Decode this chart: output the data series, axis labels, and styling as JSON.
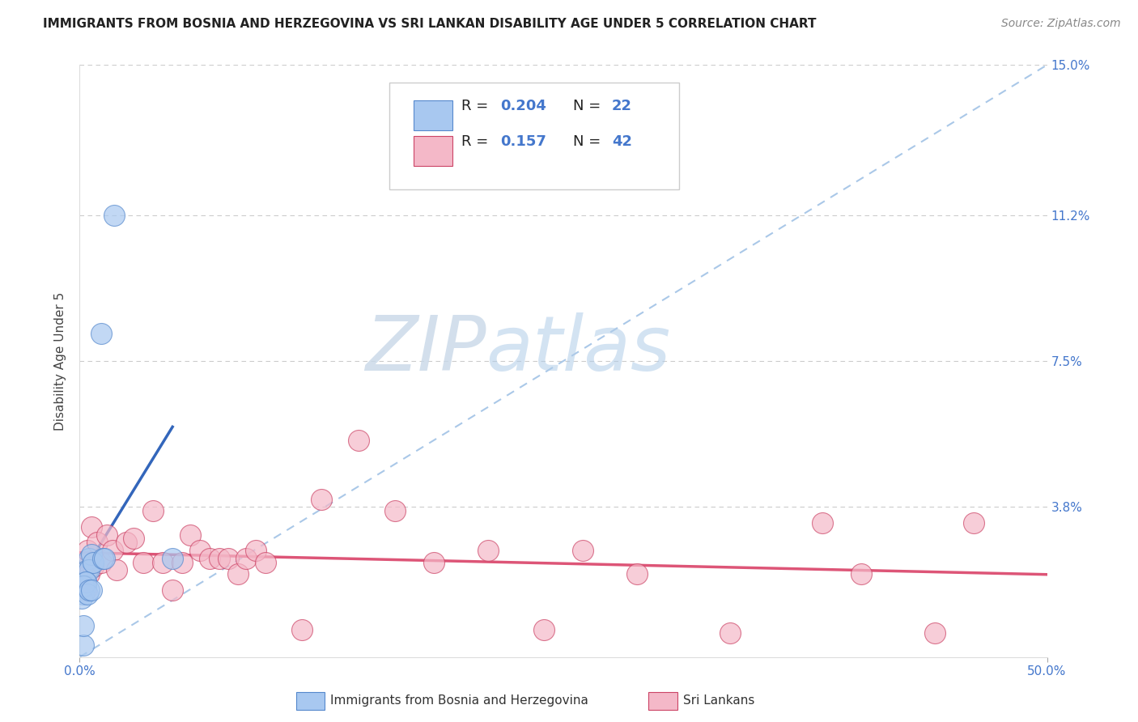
{
  "title": "IMMIGRANTS FROM BOSNIA AND HERZEGOVINA VS SRI LANKAN DISABILITY AGE UNDER 5 CORRELATION CHART",
  "source": "Source: ZipAtlas.com",
  "ylabel": "Disability Age Under 5",
  "xlim": [
    0.0,
    0.5
  ],
  "ylim": [
    0.0,
    0.15
  ],
  "yticks": [
    0.0,
    0.038,
    0.075,
    0.112,
    0.15
  ],
  "ytick_labels": [
    "",
    "3.8%",
    "7.5%",
    "11.2%",
    "15.0%"
  ],
  "xtick_labels": [
    "0.0%",
    "50.0%"
  ],
  "xticks": [
    0.0,
    0.5
  ],
  "grid_color": "#cccccc",
  "background_color": "#ffffff",
  "blue_color": "#a8c8f0",
  "pink_color": "#f4b8c8",
  "blue_edge_color": "#5588cc",
  "pink_edge_color": "#cc4466",
  "blue_line_color": "#3366bb",
  "pink_line_color": "#dd5577",
  "diag_color": "#aac8e8",
  "R_blue": 0.204,
  "N_blue": 22,
  "R_pink": 0.157,
  "N_pink": 42,
  "label_blue": "Immigrants from Bosnia and Herzegovina",
  "label_pink": "Sri Lankans",
  "blue_scatter_x": [
    0.018,
    0.011,
    0.005,
    0.004,
    0.006,
    0.003,
    0.003,
    0.005,
    0.007,
    0.002,
    0.002,
    0.001,
    0.002,
    0.003,
    0.004,
    0.012,
    0.013,
    0.005,
    0.006,
    0.002,
    0.048,
    0.002
  ],
  "blue_scatter_y": [
    0.112,
    0.082,
    0.025,
    0.022,
    0.026,
    0.019,
    0.018,
    0.022,
    0.024,
    0.018,
    0.016,
    0.015,
    0.018,
    0.019,
    0.016,
    0.025,
    0.025,
    0.017,
    0.017,
    0.003,
    0.025,
    0.008
  ],
  "pink_scatter_x": [
    0.004,
    0.003,
    0.003,
    0.006,
    0.004,
    0.005,
    0.007,
    0.009,
    0.011,
    0.014,
    0.017,
    0.019,
    0.024,
    0.028,
    0.033,
    0.038,
    0.043,
    0.048,
    0.053,
    0.057,
    0.062,
    0.067,
    0.072,
    0.077,
    0.082,
    0.086,
    0.091,
    0.096,
    0.115,
    0.125,
    0.144,
    0.163,
    0.183,
    0.211,
    0.24,
    0.26,
    0.288,
    0.336,
    0.384,
    0.404,
    0.442,
    0.462
  ],
  "pink_scatter_y": [
    0.024,
    0.017,
    0.019,
    0.033,
    0.027,
    0.021,
    0.023,
    0.029,
    0.024,
    0.031,
    0.027,
    0.022,
    0.029,
    0.03,
    0.024,
    0.037,
    0.024,
    0.017,
    0.024,
    0.031,
    0.027,
    0.025,
    0.025,
    0.025,
    0.021,
    0.025,
    0.027,
    0.024,
    0.007,
    0.04,
    0.055,
    0.037,
    0.024,
    0.027,
    0.007,
    0.027,
    0.021,
    0.006,
    0.034,
    0.021,
    0.006,
    0.034
  ],
  "watermark_zip": "ZIP",
  "watermark_atlas": "atlas",
  "title_fontsize": 11,
  "axis_label_fontsize": 11,
  "tick_fontsize": 11,
  "legend_fontsize": 13,
  "source_fontsize": 10
}
